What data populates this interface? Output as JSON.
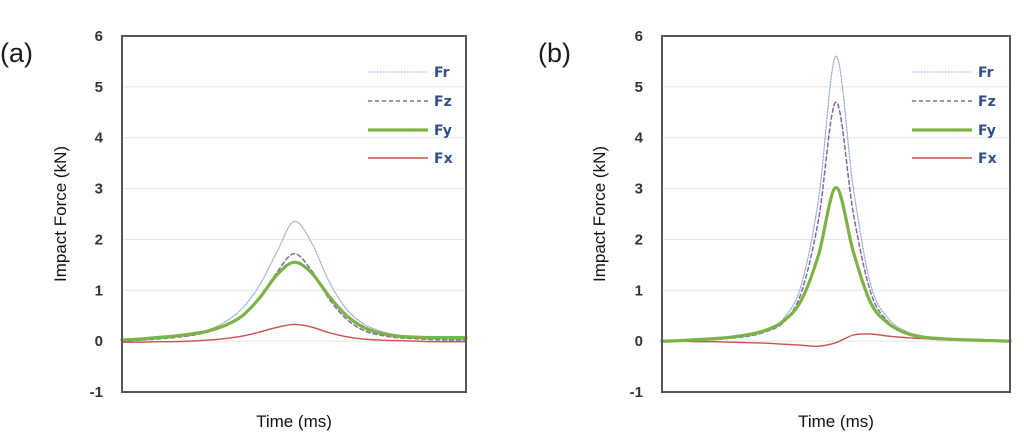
{
  "chart_data": [
    {
      "type": "line",
      "panel_label": "(a)",
      "title": "",
      "xlabel": "Time (ms)",
      "ylabel": "Impact Force (kN)",
      "ylim": [
        -1,
        6
      ],
      "yticks": [
        "6",
        "5",
        "4",
        "3",
        "2",
        "1",
        "0",
        "-1"
      ],
      "grid": true,
      "legend_position": "top-right",
      "x": [
        0,
        5,
        10,
        15,
        20,
        25,
        30,
        35,
        40,
        45,
        50,
        55,
        60,
        65,
        70,
        75,
        80,
        85,
        90,
        95,
        100
      ],
      "series": [
        {
          "name": "Fr",
          "color": "#9fb0d6",
          "style": "dotted",
          "values": [
            0.0,
            0.02,
            0.05,
            0.08,
            0.13,
            0.22,
            0.38,
            0.65,
            1.1,
            1.75,
            2.35,
            1.95,
            1.2,
            0.65,
            0.35,
            0.2,
            0.12,
            0.08,
            0.06,
            0.04,
            0.03
          ]
        },
        {
          "name": "Fz",
          "color": "#7b6aa3",
          "style": "dashed",
          "values": [
            0.0,
            0.02,
            0.04,
            0.07,
            0.11,
            0.18,
            0.3,
            0.5,
            0.85,
            1.35,
            1.72,
            1.4,
            0.85,
            0.45,
            0.22,
            0.12,
            0.07,
            0.05,
            0.03,
            0.02,
            0.02
          ]
        },
        {
          "name": "Fy",
          "color": "#7db346",
          "style": "solid-thick",
          "values": [
            0.02,
            0.04,
            0.07,
            0.1,
            0.14,
            0.2,
            0.31,
            0.5,
            0.85,
            1.3,
            1.55,
            1.35,
            0.9,
            0.52,
            0.28,
            0.16,
            0.1,
            0.08,
            0.07,
            0.07,
            0.07
          ]
        },
        {
          "name": "Fx",
          "color": "#c9504e",
          "style": "solid",
          "values": [
            -0.02,
            -0.02,
            -0.01,
            -0.01,
            0.0,
            0.02,
            0.05,
            0.1,
            0.18,
            0.27,
            0.33,
            0.28,
            0.17,
            0.09,
            0.04,
            0.02,
            0.01,
            0.0,
            -0.01,
            -0.01,
            -0.01
          ]
        }
      ]
    },
    {
      "type": "line",
      "panel_label": "(b)",
      "title": "",
      "xlabel": "Time (ms)",
      "ylabel": "Impact Force (kN)",
      "ylim": [
        -1,
        6
      ],
      "yticks": [
        "6",
        "5",
        "4",
        "3",
        "2",
        "1",
        "0",
        "-1"
      ],
      "grid": true,
      "legend_position": "top-right",
      "x": [
        0,
        5,
        10,
        15,
        20,
        25,
        30,
        35,
        40,
        45,
        50,
        55,
        60,
        65,
        70,
        75,
        80,
        85,
        90,
        95,
        100
      ],
      "series": [
        {
          "name": "Fr",
          "color": "#9fb0d6",
          "style": "dotted",
          "values": [
            0.0,
            0.01,
            0.02,
            0.04,
            0.07,
            0.12,
            0.22,
            0.45,
            1.1,
            2.8,
            5.6,
            3.0,
            1.1,
            0.45,
            0.2,
            0.1,
            0.06,
            0.04,
            0.03,
            0.02,
            0.02
          ]
        },
        {
          "name": "Fz",
          "color": "#7b6aa3",
          "style": "dashed",
          "values": [
            0.0,
            0.01,
            0.02,
            0.03,
            0.06,
            0.1,
            0.19,
            0.38,
            0.95,
            2.4,
            4.7,
            2.5,
            0.95,
            0.38,
            0.17,
            0.08,
            0.05,
            0.03,
            0.02,
            0.01,
            0.01
          ]
        },
        {
          "name": "Fy",
          "color": "#7db346",
          "style": "solid-thick",
          "values": [
            0.0,
            0.01,
            0.03,
            0.05,
            0.08,
            0.13,
            0.22,
            0.4,
            0.8,
            1.7,
            3.02,
            1.75,
            0.75,
            0.35,
            0.16,
            0.08,
            0.05,
            0.03,
            0.02,
            0.01,
            0.0
          ]
        },
        {
          "name": "Fx",
          "color": "#c9504e",
          "style": "solid",
          "values": [
            0.0,
            0.0,
            -0.01,
            -0.01,
            -0.02,
            -0.03,
            -0.04,
            -0.06,
            -0.08,
            -0.1,
            -0.03,
            0.12,
            0.14,
            0.1,
            0.07,
            0.05,
            0.03,
            0.02,
            0.01,
            0.0,
            0.0
          ]
        }
      ]
    }
  ]
}
